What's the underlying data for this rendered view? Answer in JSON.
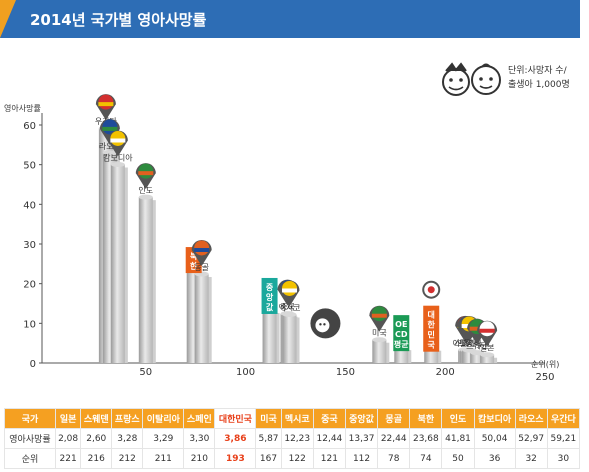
{
  "header": {
    "title": "2014년 국가별 영아사망률"
  },
  "unit_note": {
    "line1": "단위:사망자 수/",
    "line2": "출생아 1,000명"
  },
  "chart_data": {
    "type": "bar",
    "ylabel": "영아사망률",
    "xlabel": "순위(위)",
    "ylim": [
      0,
      60
    ],
    "yticks": [
      0,
      10,
      20,
      30,
      40,
      50,
      60
    ],
    "xlim": [
      0,
      250
    ],
    "xticks": [
      50,
      100,
      150,
      200,
      250
    ],
    "grid": false,
    "points": [
      {
        "name": "우간다",
        "rank": 30,
        "value": 59.21,
        "marker": "flag"
      },
      {
        "name": "라오스",
        "rank": 32,
        "value": 52.97,
        "marker": "flag"
      },
      {
        "name": "캄보디아",
        "rank": 36,
        "value": 50.04,
        "marker": "flag"
      },
      {
        "name": "인도",
        "rank": 50,
        "value": 41.81,
        "marker": "flag"
      },
      {
        "name": "북한",
        "rank": 74,
        "value": 23.68,
        "marker": "box"
      },
      {
        "name": "몽골",
        "rank": 78,
        "value": 22.44,
        "marker": "flag"
      },
      {
        "name": "중앙값",
        "rank": 112,
        "value": 13.37,
        "marker": "box"
      },
      {
        "name": "중국",
        "rank": 121,
        "value": 12.44,
        "marker": "flag"
      },
      {
        "name": "멕시코",
        "rank": 122,
        "value": 12.23,
        "marker": "flag"
      },
      {
        "name": "미국",
        "rank": 167,
        "value": 5.87,
        "marker": "flag"
      },
      {
        "name": "OE CD 평균",
        "rank": 178,
        "value": 4.0,
        "marker": "box"
      },
      {
        "name": "대한민국",
        "rank": 193,
        "value": 3.86,
        "marker": "box"
      },
      {
        "name": "스페인",
        "rank": 210,
        "value": 3.3,
        "marker": "flag"
      },
      {
        "name": "이탈리아",
        "rank": 211,
        "value": 3.29,
        "marker": "flag"
      },
      {
        "name": "프랑스",
        "rank": 212,
        "value": 3.28,
        "marker": "flag"
      },
      {
        "name": "스웨덴",
        "rank": 216,
        "value": 2.6,
        "marker": "flag"
      },
      {
        "name": "일본",
        "rank": 221,
        "value": 2.08,
        "marker": "flag"
      }
    ]
  },
  "table": {
    "headers": [
      "국가",
      "일본",
      "스웨덴",
      "프랑스",
      "이탈리아",
      "스페인",
      "대한민국",
      "미국",
      "멕시코",
      "중국",
      "중앙값",
      "몽골",
      "북한",
      "인도",
      "캄보디아",
      "라오스",
      "우간다"
    ],
    "rows": [
      {
        "label": "영아사망률",
        "cells": [
          "2,08",
          "2,60",
          "3,28",
          "3,29",
          "3,30",
          "3,86",
          "5,87",
          "12,23",
          "12,44",
          "13,37",
          "22,44",
          "23,68",
          "41,81",
          "50,04",
          "52,97",
          "59,21"
        ]
      },
      {
        "label": "순위",
        "cells": [
          "221",
          "216",
          "212",
          "211",
          "210",
          "193",
          "167",
          "122",
          "121",
          "112",
          "78",
          "74",
          "50",
          "36",
          "32",
          "30"
        ]
      }
    ],
    "highlight_index": 5
  },
  "colors": {
    "title_bg": "#2d6db5",
    "title_accent": "#f0a020",
    "highlight": "#e8401a",
    "median_box": "#1aa89c",
    "oecd_box": "#1a9a55",
    "korea_box": "#e8601a",
    "nk_box": "#e8601a"
  }
}
